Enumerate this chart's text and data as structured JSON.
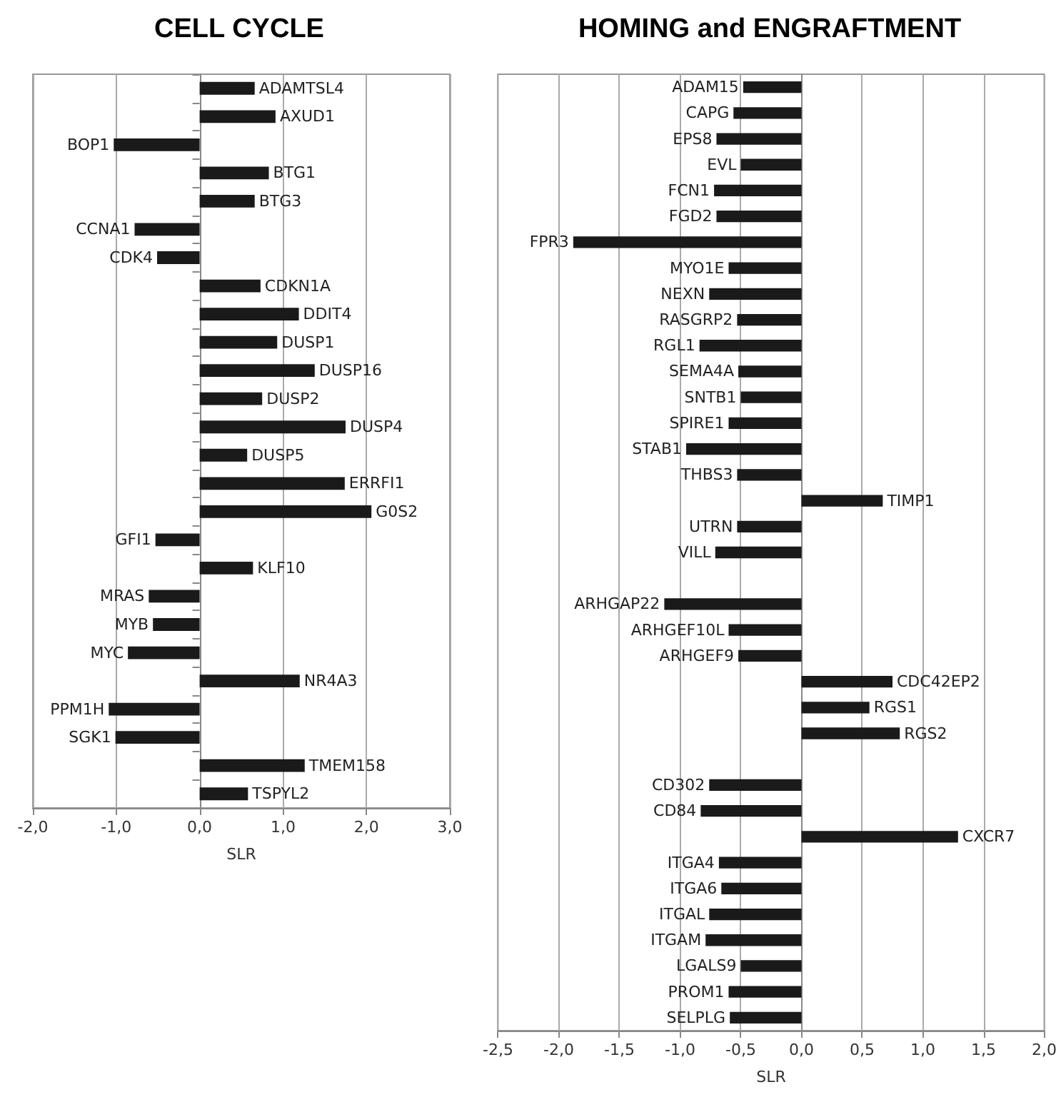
{
  "chart_data": [
    {
      "type": "bar",
      "orientation": "horizontal",
      "title": "CELL CYCLE",
      "xlabel": "SLR",
      "categories": [
        "ADAMTSL4",
        "AXUD1",
        "BOP1",
        "BTG1",
        "BTG3",
        "CCNA1",
        "CDK4",
        "CDKN1A",
        "DDIT4",
        "DUSP1",
        "DUSP16",
        "DUSP2",
        "DUSP4",
        "DUSP5",
        "ERRFI1",
        "G0S2",
        "GFI1",
        "KLF10",
        "MRAS",
        "MYB",
        "MYC",
        "NR4A3",
        "PPM1H",
        "SGK1",
        "TMEM158",
        "TSPYL2"
      ],
      "values": [
        0.66,
        0.91,
        -1.03,
        0.83,
        0.66,
        -0.78,
        -0.51,
        0.73,
        1.19,
        0.93,
        1.38,
        0.75,
        1.75,
        0.57,
        1.74,
        2.06,
        -0.53,
        0.64,
        -0.61,
        -0.56,
        -0.86,
        1.2,
        -1.09,
        -1.01,
        1.26,
        0.58
      ],
      "color": "#1a1a1a",
      "xlim": [
        -2,
        3
      ],
      "xticks": [
        {
          "value": -2,
          "label": "-2,0"
        },
        {
          "value": -1,
          "label": "-1,0"
        },
        {
          "value": 0,
          "label": "0,0"
        },
        {
          "value": 1,
          "label": "1,0"
        },
        {
          "value": 2,
          "label": "2,0"
        },
        {
          "value": 3,
          "label": "3,0"
        }
      ],
      "grid": "x"
    },
    {
      "type": "bar",
      "orientation": "horizontal",
      "title": "HOMING and ENGRAFTMENT",
      "xlabel": "SLR",
      "categories": [
        "ADAM15",
        "CAPG",
        "EPS8",
        "EVL",
        "FCN1",
        "FGD2",
        "FPR3",
        "MYO1E",
        "NEXN",
        "RASGRP2",
        "RGL1",
        "SEMA4A",
        "SNTB1",
        "SPIRE1",
        "STAB1",
        "THBS3",
        "TIMP1",
        "UTRN",
        "VILL",
        null,
        "ARHGAP22",
        "ARHGEF10L",
        "ARHGEF9",
        "CDC42EP2",
        "RGS1",
        "RGS2",
        null,
        "CD302",
        "CD84",
        "CXCR7",
        "ITGA4",
        "ITGA6",
        "ITGAL",
        "ITGAM",
        "LGALS9",
        "PROM1",
        "SELPLG"
      ],
      "values": [
        -0.48,
        -0.56,
        -0.7,
        -0.5,
        -0.72,
        -0.7,
        -1.88,
        -0.6,
        -0.76,
        -0.53,
        -0.84,
        -0.52,
        -0.5,
        -0.6,
        -0.95,
        -0.53,
        0.67,
        -0.53,
        -0.71,
        null,
        -1.13,
        -0.6,
        -0.52,
        0.75,
        0.56,
        0.81,
        null,
        -0.76,
        -0.83,
        1.29,
        -0.68,
        -0.66,
        -0.76,
        -0.79,
        -0.5,
        -0.6,
        -0.59
      ],
      "color": "#1a1a1a",
      "xlim": [
        -2.5,
        2
      ],
      "xticks": [
        {
          "value": -2.5,
          "label": "-2,5"
        },
        {
          "value": -2,
          "label": "-2,0"
        },
        {
          "value": -1.5,
          "label": "-1,5"
        },
        {
          "value": -1,
          "label": "-1,0"
        },
        {
          "value": -0.5,
          "label": "-0,5"
        },
        {
          "value": 0,
          "label": "0,0"
        },
        {
          "value": 0.5,
          "label": "0,5"
        },
        {
          "value": 1,
          "label": "1,0"
        },
        {
          "value": 1.5,
          "label": "1,5"
        },
        {
          "value": 2,
          "label": "2,0"
        }
      ],
      "grid": "x"
    }
  ]
}
